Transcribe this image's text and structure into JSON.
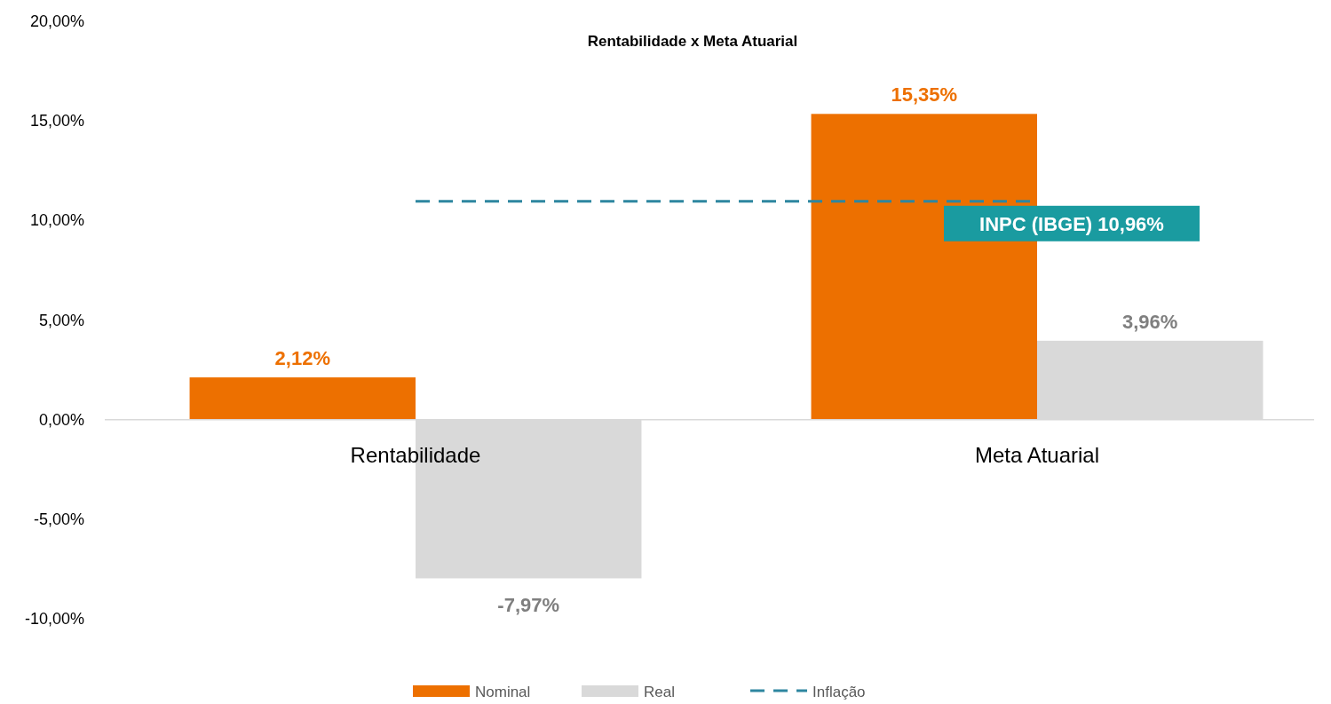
{
  "chart_data": {
    "type": "bar",
    "title": "Rentabilidade x Meta Atuarial",
    "categories": [
      "Rentabilidade",
      "Meta Atuarial"
    ],
    "series": [
      {
        "name": "Nominal",
        "color": "#ed7000",
        "values": [
          2.12,
          15.35
        ],
        "value_labels": [
          "2,12%",
          "15,35%"
        ]
      },
      {
        "name": "Real",
        "color": "#d9d9d9",
        "values": [
          -7.97,
          3.96
        ],
        "value_labels": [
          "-7,97%",
          "3,96%"
        ]
      },
      {
        "name": "Inflação",
        "type": "line",
        "color": "#2e86a0",
        "line_style": "dashed",
        "values": [
          10.96,
          10.96
        ]
      }
    ],
    "annotations": [
      {
        "text": "INPC (IBGE) 10,96%",
        "x": "Meta Atuarial",
        "y": 10.96
      }
    ],
    "ylim": [
      -10,
      20
    ],
    "yticks": [
      {
        "value": -10,
        "label": "-10,00%"
      },
      {
        "value": -5,
        "label": "-5,00%"
      },
      {
        "value": 0,
        "label": "0,00%"
      },
      {
        "value": 5,
        "label": "5,00%"
      },
      {
        "value": 10,
        "label": "10,00%"
      },
      {
        "value": 15,
        "label": "15,00%"
      },
      {
        "value": 20,
        "label": "20,00%"
      }
    ],
    "grid": false,
    "legend": "bottom"
  }
}
